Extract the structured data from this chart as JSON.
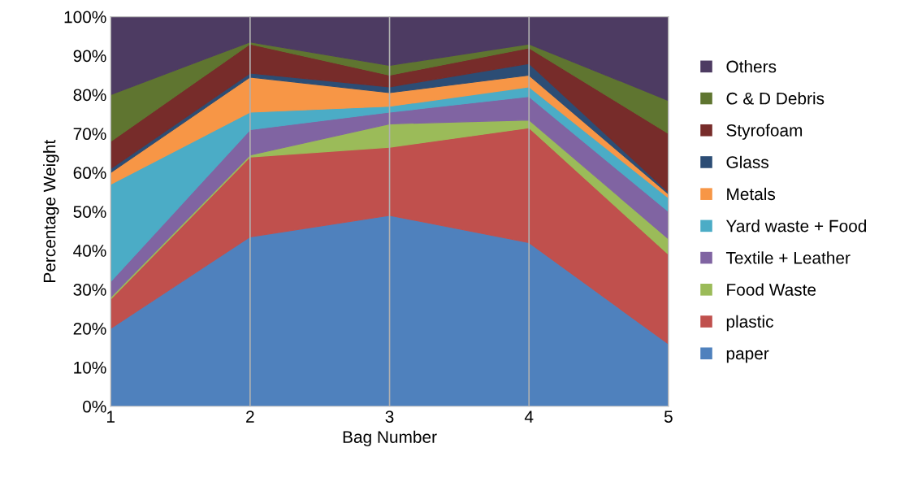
{
  "chart_data": {
    "type": "area",
    "stacked": true,
    "xlabel": "Bag Number",
    "ylabel": "Percentage Weight",
    "x": [
      1,
      2,
      3,
      4,
      5
    ],
    "xlim": [
      1,
      5
    ],
    "xticks": [
      1,
      2,
      3,
      4,
      5
    ],
    "ylim": [
      0,
      100
    ],
    "yticks": [
      {
        "value": 0,
        "label": "0%"
      },
      {
        "value": 10,
        "label": "10%"
      },
      {
        "value": 20,
        "label": "20%"
      },
      {
        "value": 30,
        "label": "30%"
      },
      {
        "value": 40,
        "label": "40%"
      },
      {
        "value": 50,
        "label": "50%"
      },
      {
        "value": 60,
        "label": "60%"
      },
      {
        "value": 70,
        "label": "70%"
      },
      {
        "value": 80,
        "label": "80%"
      },
      {
        "value": 90,
        "label": "90%"
      },
      {
        "value": 100,
        "label": "100%"
      }
    ],
    "grid": "x",
    "legend": "right",
    "series": [
      {
        "name": "paper",
        "color": "#4f81bd",
        "values": [
          20,
          43.5,
          49,
          42,
          16
        ]
      },
      {
        "name": "plastic",
        "color": "#c0504d",
        "values": [
          7.5,
          20.5,
          17.5,
          29.5,
          23
        ]
      },
      {
        "name": "Food Waste",
        "color": "#9bbb59",
        "values": [
          0.5,
          0.5,
          6,
          2,
          4
        ]
      },
      {
        "name": "Textile + Leather",
        "color": "#8064a2",
        "values": [
          4,
          6.5,
          3,
          6,
          7
        ]
      },
      {
        "name": "Yard waste + Food",
        "color": "#4bacc6",
        "values": [
          25,
          4.5,
          1.5,
          2.5,
          3.5
        ]
      },
      {
        "name": "Metals",
        "color": "#f79646",
        "values": [
          3,
          9,
          3.5,
          3,
          1
        ]
      },
      {
        "name": "Glass",
        "color": "#2c4d75",
        "values": [
          1,
          1,
          1.5,
          3,
          0.5
        ]
      },
      {
        "name": "Styrofoam",
        "color": "#772c2a",
        "values": [
          7,
          7.5,
          3,
          4,
          15
        ]
      },
      {
        "name": "C & D Debris",
        "color": "#5f7530",
        "values": [
          12,
          0.5,
          2.5,
          1,
          8.5
        ]
      },
      {
        "name": "Others",
        "color": "#4d3b62",
        "values": [
          20,
          6.5,
          12.5,
          7,
          21.5
        ]
      }
    ]
  }
}
